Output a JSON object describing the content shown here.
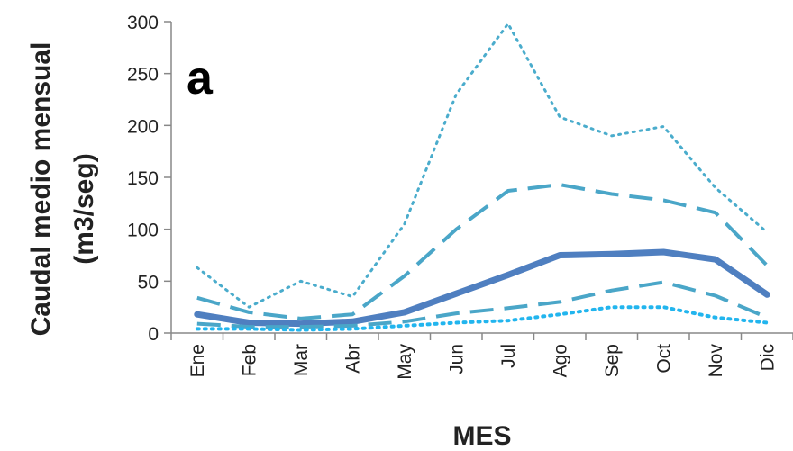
{
  "chart_data": {
    "type": "line",
    "panel_label": "a",
    "title": "",
    "xlabel": "MES",
    "ylabel_line1": "Caudal medio mensual",
    "ylabel_line2": "(m3/seg)",
    "categories": [
      "Ene",
      "Feb",
      "Mar",
      "Abr",
      "May",
      "Jun",
      "Jul",
      "Ago",
      "Sep",
      "Oct",
      "Nov",
      "Dic"
    ],
    "ylim": [
      0,
      300
    ],
    "yticks": [
      0,
      50,
      100,
      150,
      200,
      250,
      300
    ],
    "legend": "none",
    "grid": false,
    "series": [
      {
        "style": "dotted-upper",
        "color": "#4aaccc",
        "values": [
          63,
          25,
          50,
          35,
          105,
          230,
          298,
          208,
          190,
          199,
          140,
          97
        ]
      },
      {
        "style": "dashed-upper",
        "color": "#4aa6c8",
        "values": [
          34,
          20,
          14,
          18,
          55,
          100,
          137,
          143,
          134,
          128,
          116,
          65
        ]
      },
      {
        "style": "solid-mean",
        "color": "#4f7fc0",
        "values": [
          18,
          10,
          9,
          11,
          20,
          38,
          56,
          75,
          76,
          78,
          71,
          37
        ]
      },
      {
        "style": "dashed-lower",
        "color": "#4aa6c8",
        "values": [
          9,
          6,
          6,
          7,
          11,
          19,
          24,
          30,
          41,
          49,
          36,
          15
        ]
      },
      {
        "style": "dotted-lower",
        "color": "#22b5ee",
        "values": [
          4,
          4,
          3,
          4,
          7,
          10,
          12,
          18,
          25,
          25,
          15,
          10
        ]
      }
    ]
  }
}
